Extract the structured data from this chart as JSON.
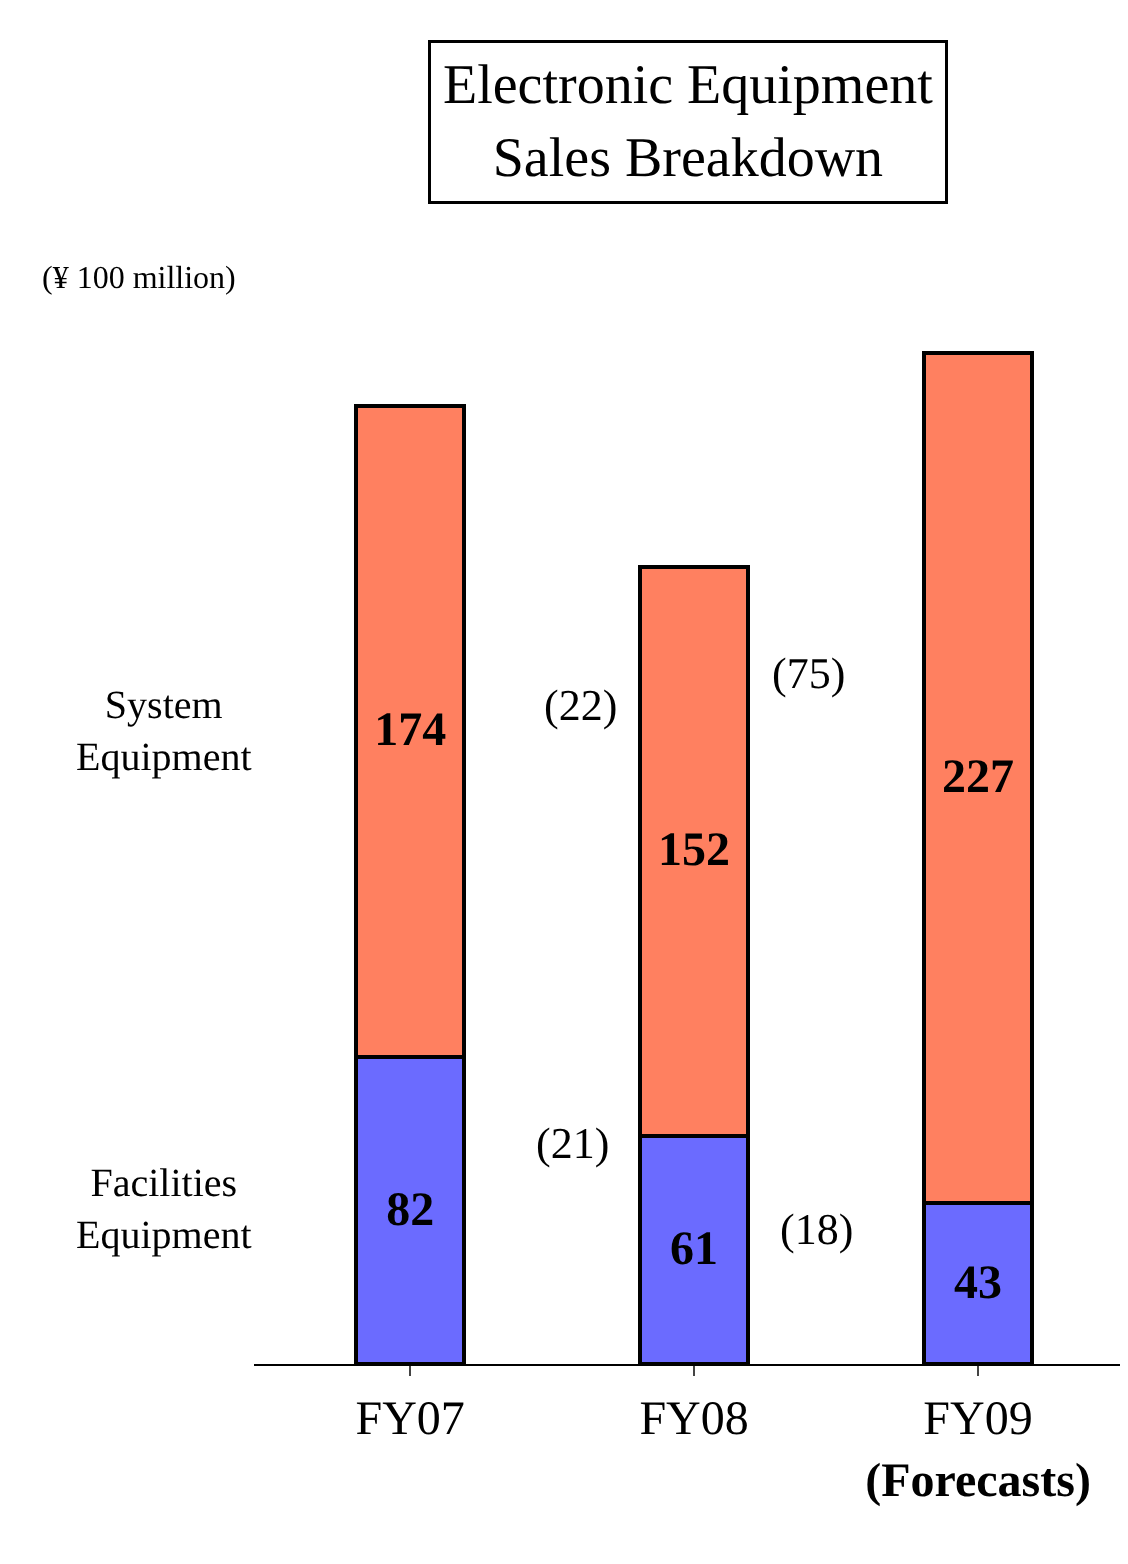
{
  "chart_data": {
    "type": "bar",
    "title": "Electronic Equipment\nSales Breakdown",
    "ylabel": "(¥ 100 million)",
    "categories": [
      "FY07",
      "FY08",
      "FY09\n(Forecasts)"
    ],
    "stacked": true,
    "data_labels": true,
    "legend": false,
    "series": [
      {
        "name": "Facilities Equipment",
        "color": "#6b6bff",
        "values": [
          82,
          61,
          43
        ]
      },
      {
        "name": "System Equipment",
        "color": "#ff8060",
        "values": [
          174,
          152,
          227
        ]
      }
    ],
    "annotations": [
      "(22)",
      "(75)",
      "(21)",
      "(18)"
    ]
  }
}
